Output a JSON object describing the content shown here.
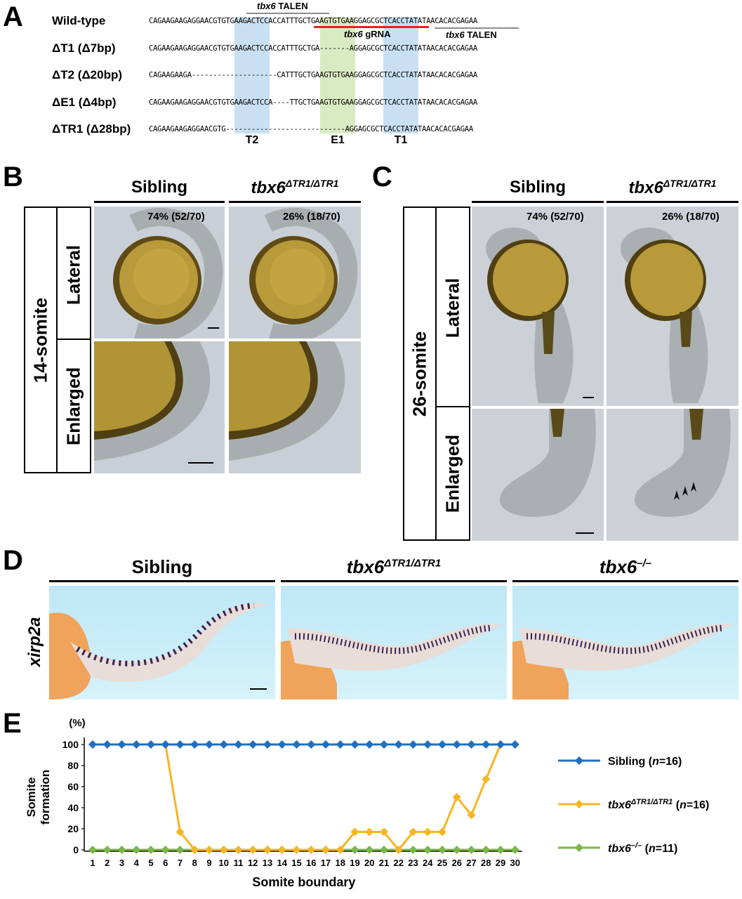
{
  "panels": {
    "A": "A",
    "B": "B",
    "C": "C",
    "D": "D",
    "E": "E"
  },
  "panelA": {
    "rows": [
      {
        "label": "Wild-type",
        "seq": "CAGAAGAAGAGGAACGTGTGAAGACTCCACCATTTGCTGAAGTGTGAAGGAGCGCTCACCTATATAACACACGAGAA"
      },
      {
        "label": "ΔT1 (Δ7bp)",
        "seq": "CAGAAGAAGAGGAACGTGTGAAGACTCCACCATTTGCTGA-------AGGAGCGCTCACCTATATAACACACGAGAA"
      },
      {
        "label": "ΔT2 (Δ20bp)",
        "seq": "CAGAAGAAGA--------------------CATTTGCTGAAGTGTGAAGGAGCGCTCACCTATATAACACACGAGAA"
      },
      {
        "label": "ΔE1 (Δ4bp)",
        "seq": "CAGAAGAAGAGGAACGTGTGAAGACTCCA----TTGCTGAAGTGTGAAGGAGCGCTCACCTATATAACACACGAGAA"
      },
      {
        "label": "ΔTR1 (Δ28bp)",
        "seq": "CAGAAGAAGAGGAACGTG----------------------------AGGAGCGCTCACCTATATAACACACGAGAA"
      }
    ],
    "talen1_gene": "tbx6",
    "talen1_suffix": " TALEN",
    "talen2_gene": "tbx6",
    "talen2_suffix": " TALEN",
    "grna_gene": "tbx6",
    "grna_suffix": " gRNA",
    "regions": [
      "T2",
      "E1",
      "T1"
    ],
    "colors": {
      "blue": "#9cc6ea",
      "green": "#bcd98f",
      "red": "#e8221f",
      "gray": "#8c8c8c"
    }
  },
  "panelB": {
    "col1": "Sibling",
    "col2_base": "tbx6",
    "col2_sup": "ΔTR1/ΔTR1",
    "side": "14-somite",
    "row1": "Lateral",
    "row2": "Enlarged",
    "pct1": "74% (52/70)",
    "pct2": "26% (18/70)"
  },
  "panelC": {
    "col1": "Sibling",
    "col2_base": "tbx6",
    "col2_sup": "ΔTR1/ΔTR1",
    "side": "26-somite",
    "row1": "Lateral",
    "row2": "Enlarged",
    "pct1": "74% (52/70)",
    "pct2": "26% (18/70)"
  },
  "panelD": {
    "col1": "Sibling",
    "col2_base": "tbx6",
    "col2_sup": "ΔTR1/ΔTR1",
    "col3_base": "tbx6",
    "col3_sup": "–/–",
    "gene": "xirp2a"
  },
  "chart_data": {
    "type": "line",
    "ylabel_line1": "Somite",
    "ylabel_line2": "formation",
    "yunit": "(%)",
    "xlabel": "Somite boundary",
    "ylim": [
      0,
      100
    ],
    "yticks": [
      0,
      20,
      40,
      60,
      80,
      100
    ],
    "x": [
      1,
      2,
      3,
      4,
      5,
      6,
      7,
      8,
      9,
      10,
      11,
      12,
      13,
      14,
      15,
      16,
      17,
      18,
      19,
      20,
      21,
      22,
      23,
      24,
      25,
      26,
      27,
      28,
      29,
      30
    ],
    "series": [
      {
        "name_base": "Sibling",
        "name_sup": "",
        "n": "16",
        "color": "#1f6fc0",
        "values": [
          100,
          100,
          100,
          100,
          100,
          100,
          100,
          100,
          100,
          100,
          100,
          100,
          100,
          100,
          100,
          100,
          100,
          100,
          100,
          100,
          100,
          100,
          100,
          100,
          100,
          100,
          100,
          100,
          100,
          100
        ]
      },
      {
        "name_base": "tbx6",
        "name_sup": "ΔTR1/ΔTR1",
        "n": "16",
        "color": "#f5b623",
        "values": [
          100,
          100,
          100,
          100,
          100,
          100,
          17,
          0,
          0,
          0,
          0,
          0,
          0,
          0,
          0,
          0,
          0,
          0,
          17,
          17,
          17,
          0,
          17,
          17,
          17,
          50,
          33,
          67,
          100,
          100
        ]
      },
      {
        "name_base": "tbx6",
        "name_sup": "–/–",
        "n": "11",
        "color": "#7ab648",
        "values": [
          0,
          0,
          0,
          0,
          0,
          0,
          0,
          0,
          0,
          0,
          0,
          0,
          0,
          0,
          0,
          0,
          0,
          0,
          0,
          0,
          0,
          0,
          0,
          0,
          0,
          0,
          0,
          0,
          0,
          0
        ]
      }
    ]
  }
}
